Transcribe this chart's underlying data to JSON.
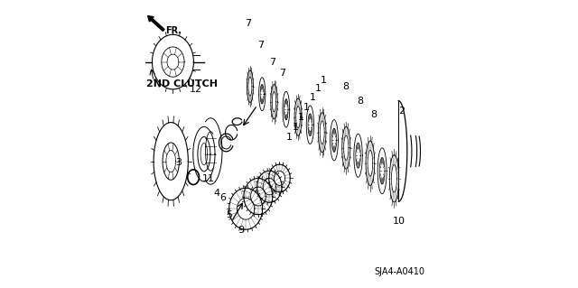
{
  "background_color": "#ffffff",
  "diagram_code": "SJA4-A0410",
  "label_2nd_clutch": "2ND CLUTCH",
  "fr_label": "FR.",
  "line_color": "#000000",
  "text_color": "#000000",
  "font_size_label": 8,
  "font_size_diagram_code": 7,
  "font_size_2nd_clutch": 8
}
